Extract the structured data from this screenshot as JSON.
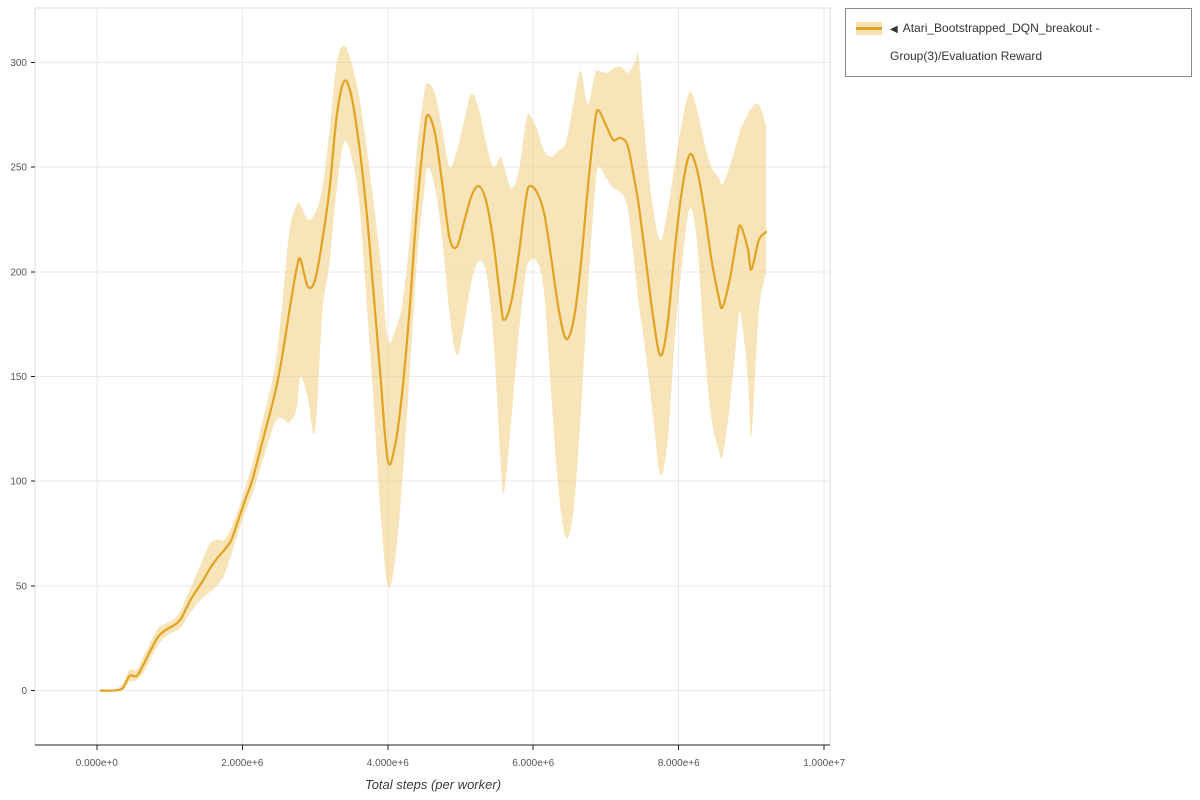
{
  "page": {
    "background": "#ffffff"
  },
  "legend": {
    "collapse_icon": "◀",
    "label": "Atari_Bootstrapped_DQN_breakout - Group(3)/Evaluation Reward"
  },
  "chart_data": {
    "type": "line",
    "title": "",
    "xlabel": "Total steps (per worker)",
    "ylabel": "",
    "xlim": [
      -850000,
      10080000
    ],
    "ylim": [
      -26,
      326
    ],
    "x_ticks": [
      0,
      2000000,
      4000000,
      6000000,
      8000000,
      10000000
    ],
    "x_tick_labels": [
      "0.000e+0",
      "2.000e+6",
      "4.000e+6",
      "6.000e+6",
      "8.000e+6",
      "1.000e+7"
    ],
    "y_ticks": [
      0,
      50,
      100,
      150,
      200,
      250,
      300
    ],
    "y_tick_labels": [
      "0",
      "50",
      "100",
      "150",
      "200",
      "250",
      "300"
    ],
    "grid": true,
    "legend_position": "top-right",
    "colors": {
      "line": "#E2A324",
      "band": "#F0CE7E",
      "gridline": "#e9e9ef",
      "axis": "#222222",
      "tick_text": "#555555"
    },
    "series": [
      {
        "name": "Atari_Bootstrapped_DQN_breakout - Group(3)/Evaluation Reward",
        "color": "#E2A324",
        "band_color": "#F0CE7E",
        "band_opacity": 0.55,
        "x": [
          50000,
          200000,
          350000,
          450000,
          550000,
          650000,
          750000,
          850000,
          950000,
          1050000,
          1150000,
          1300000,
          1450000,
          1550000,
          1650000,
          1750000,
          1850000,
          1950000,
          2050000,
          2150000,
          2300000,
          2450000,
          2550000,
          2650000,
          2750000,
          2800000,
          2900000,
          3000000,
          3100000,
          3200000,
          3300000,
          3400000,
          3500000,
          3600000,
          3700000,
          3800000,
          3900000,
          4000000,
          4100000,
          4200000,
          4300000,
          4400000,
          4500000,
          4550000,
          4650000,
          4750000,
          4850000,
          4950000,
          5050000,
          5150000,
          5250000,
          5350000,
          5450000,
          5550000,
          5600000,
          5700000,
          5800000,
          5900000,
          5950000,
          6050000,
          6150000,
          6250000,
          6350000,
          6450000,
          6550000,
          6650000,
          6750000,
          6850000,
          6900000,
          7000000,
          7100000,
          7200000,
          7300000,
          7400000,
          7450000,
          7550000,
          7650000,
          7750000,
          7850000,
          7950000,
          8050000,
          8150000,
          8250000,
          8350000,
          8450000,
          8550000,
          8600000,
          8700000,
          8800000,
          8850000,
          8950000,
          9000000,
          9100000,
          9200000
        ],
        "mean": [
          0,
          0,
          1,
          7,
          7,
          13,
          20,
          26,
          29,
          31,
          34,
          44,
          52,
          58,
          63,
          67,
          72,
          82,
          92,
          102,
          122,
          142,
          160,
          182,
          202,
          206,
          193,
          196,
          215,
          240,
          275,
          291,
          284,
          262,
          232,
          192,
          150,
          110,
          117,
          143,
          182,
          230,
          265,
          275,
          266,
          242,
          216,
          212,
          224,
          236,
          241,
          234,
          215,
          186,
          177,
          186,
          208,
          235,
          241,
          238,
          228,
          206,
          182,
          168,
          176,
          202,
          240,
          272,
          277,
          270,
          263,
          264,
          260,
          242,
          232,
          205,
          178,
          160,
          176,
          212,
          240,
          256,
          249,
          230,
          206,
          188,
          183,
          196,
          216,
          222,
          211,
          201,
          215,
          219
        ],
        "lower": [
          0,
          0,
          0,
          4,
          5,
          9,
          16,
          22,
          26,
          28,
          30,
          38,
          44,
          47,
          50,
          55,
          65,
          76,
          86,
          95,
          112,
          128,
          130,
          128,
          135,
          150,
          140,
          124,
          180,
          205,
          240,
          262,
          255,
          235,
          190,
          140,
          85,
          50,
          62,
          100,
          150,
          205,
          238,
          250,
          240,
          215,
          180,
          160,
          175,
          195,
          205,
          200,
          170,
          110,
          95,
          130,
          170,
          200,
          205,
          205,
          190,
          140,
          95,
          73,
          85,
          130,
          190,
          240,
          250,
          245,
          240,
          238,
          230,
          200,
          185,
          160,
          130,
          103,
          120,
          170,
          205,
          230,
          215,
          165,
          130,
          115,
          112,
          135,
          170,
          180,
          150,
          122,
          180,
          200
        ],
        "upper": [
          0,
          0,
          3,
          10,
          10,
          17,
          24,
          30,
          32,
          34,
          38,
          50,
          62,
          70,
          72,
          72,
          78,
          87,
          98,
          110,
          132,
          155,
          185,
          220,
          232,
          232,
          225,
          228,
          240,
          268,
          300,
          308,
          300,
          285,
          262,
          235,
          205,
          168,
          172,
          185,
          215,
          258,
          285,
          290,
          285,
          268,
          250,
          258,
          272,
          285,
          278,
          262,
          250,
          255,
          250,
          240,
          248,
          272,
          275,
          268,
          258,
          255,
          258,
          262,
          280,
          296,
          280,
          295,
          296,
          295,
          297,
          298,
          295,
          300,
          302,
          260,
          230,
          215,
          230,
          252,
          272,
          286,
          278,
          262,
          250,
          245,
          242,
          250,
          262,
          268,
          275,
          278,
          280,
          270
        ]
      }
    ]
  }
}
